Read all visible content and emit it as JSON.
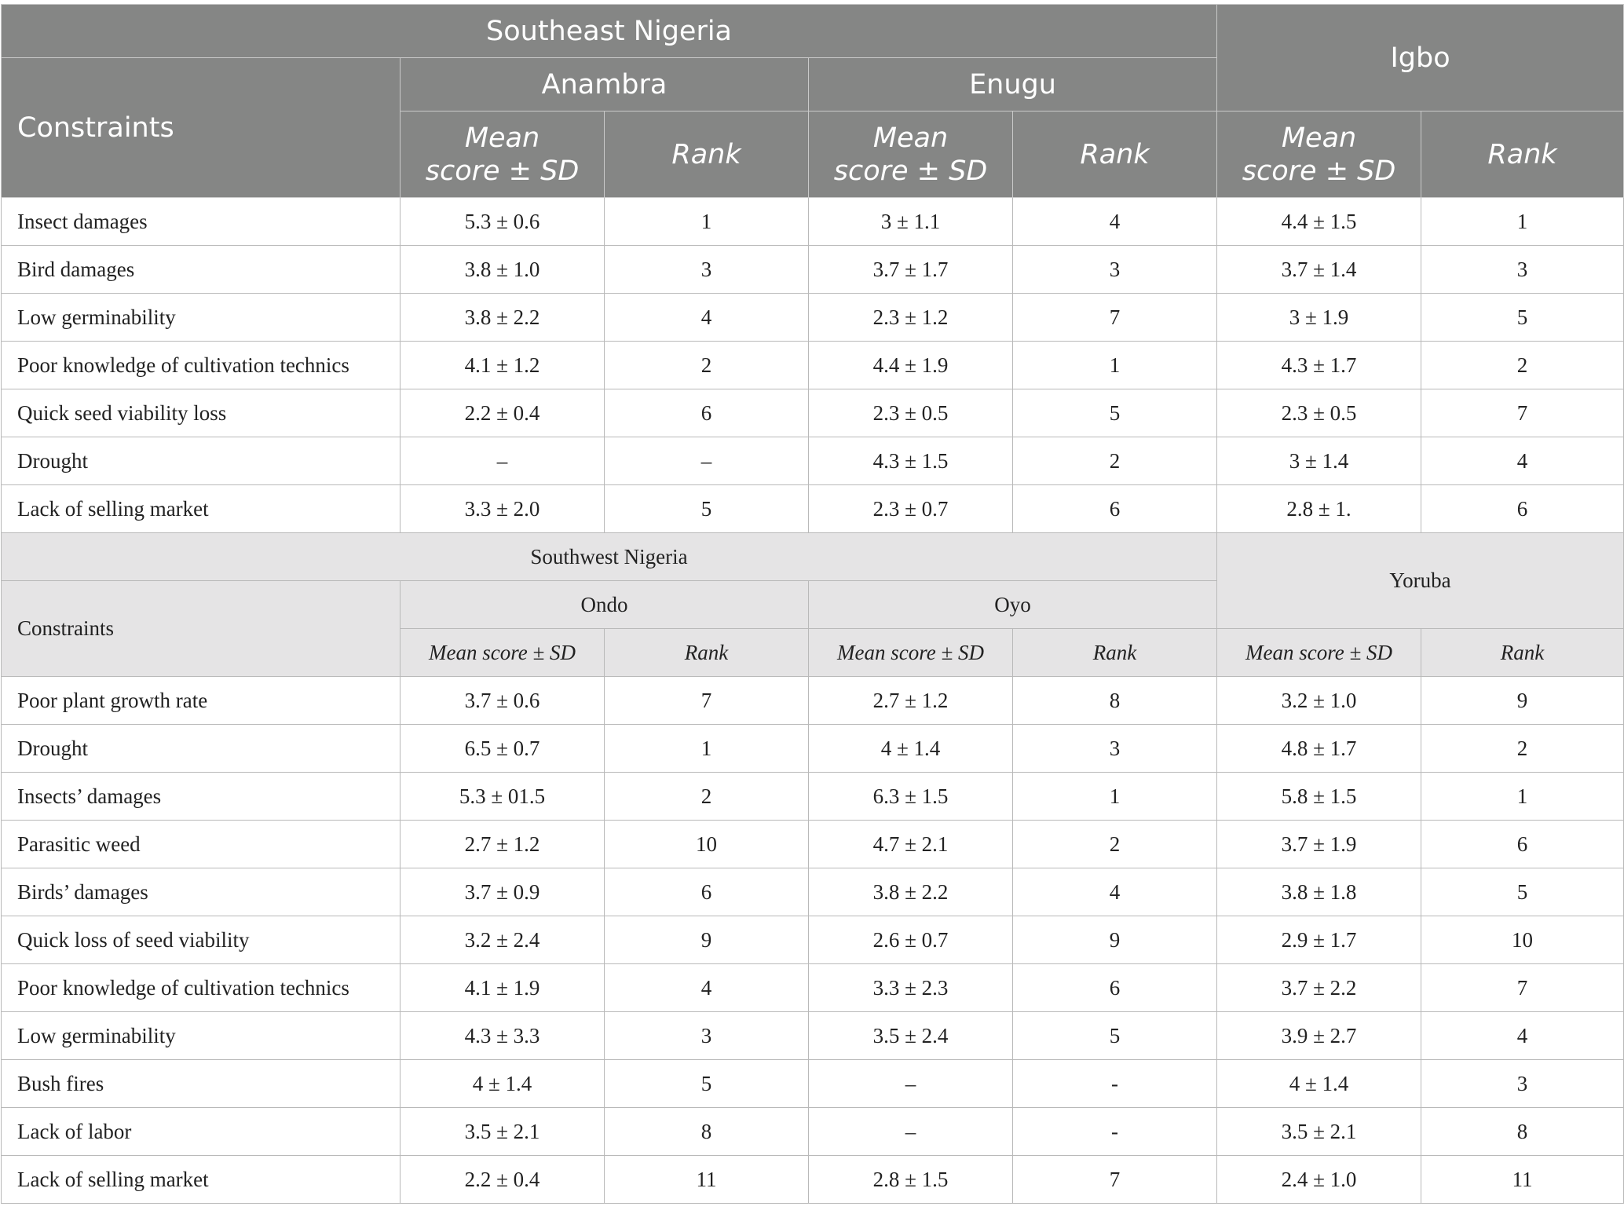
{
  "southeast": {
    "region": "Southeast Nigeria",
    "constraints_label": "Constraints",
    "state1": "Anambra",
    "state2": "Enugu",
    "group": "Igbo",
    "mean_label_1": "Mean",
    "mean_label_2": "score ± SD",
    "rank_label": "Rank",
    "rows": [
      {
        "constraint": "Insect damages",
        "s1_mean": "5.3 ± 0.6",
        "s1_rank": "1",
        "s2_mean": "3 ± 1.1",
        "s2_rank": "4",
        "g_mean": "4.4 ± 1.5",
        "g_rank": "1"
      },
      {
        "constraint": "Bird damages",
        "s1_mean": "3.8 ± 1.0",
        "s1_rank": "3",
        "s2_mean": "3.7 ± 1.7",
        "s2_rank": "3",
        "g_mean": "3.7 ± 1.4",
        "g_rank": "3"
      },
      {
        "constraint": "Low germinability",
        "s1_mean": "3.8 ± 2.2",
        "s1_rank": "4",
        "s2_mean": "2.3 ± 1.2",
        "s2_rank": "7",
        "g_mean": "3 ± 1.9",
        "g_rank": "5"
      },
      {
        "constraint": "Poor knowledge of cultivation technics",
        "s1_mean": "4.1 ± 1.2",
        "s1_rank": "2",
        "s2_mean": "4.4 ± 1.9",
        "s2_rank": "1",
        "g_mean": "4.3 ± 1.7",
        "g_rank": "2"
      },
      {
        "constraint": "Quick seed viability loss",
        "s1_mean": "2.2 ± 0.4",
        "s1_rank": "6",
        "s2_mean": "2.3 ± 0.5",
        "s2_rank": "5",
        "g_mean": "2.3 ± 0.5",
        "g_rank": "7"
      },
      {
        "constraint": "Drought",
        "s1_mean": "–",
        "s1_rank": "–",
        "s2_mean": "4.3 ± 1.5",
        "s2_rank": "2",
        "g_mean": "3 ± 1.4",
        "g_rank": "4"
      },
      {
        "constraint": "Lack of selling market",
        "s1_mean": "3.3 ± 2.0",
        "s1_rank": "5",
        "s2_mean": "2.3 ± 0.7",
        "s2_rank": "6",
        "g_mean": "2.8 ± 1.",
        "g_rank": "6"
      }
    ]
  },
  "southwest": {
    "region": "Southwest Nigeria",
    "constraints_label": "Constraints",
    "state1": "Ondo",
    "state2": "Oyo",
    "group": "Yoruba",
    "mean_label": "Mean score ± SD",
    "rank_label": "Rank",
    "rows": [
      {
        "constraint": "Poor plant growth rate",
        "s1_mean": "3.7 ± 0.6",
        "s1_rank": "7",
        "s2_mean": "2.7 ± 1.2",
        "s2_rank": "8",
        "g_mean": "3.2 ± 1.0",
        "g_rank": "9"
      },
      {
        "constraint": "Drought",
        "s1_mean": "6.5 ± 0.7",
        "s1_rank": "1",
        "s2_mean": "4 ± 1.4",
        "s2_rank": "3",
        "g_mean": "4.8 ± 1.7",
        "g_rank": "2"
      },
      {
        "constraint": "Insects’ damages",
        "s1_mean": "5.3 ± 01.5",
        "s1_rank": "2",
        "s2_mean": "6.3 ± 1.5",
        "s2_rank": "1",
        "g_mean": "5.8 ± 1.5",
        "g_rank": "1"
      },
      {
        "constraint": "Parasitic weed",
        "s1_mean": "2.7 ± 1.2",
        "s1_rank": "10",
        "s2_mean": "4.7 ± 2.1",
        "s2_rank": "2",
        "g_mean": "3.7 ± 1.9",
        "g_rank": "6"
      },
      {
        "constraint": "Birds’ damages",
        "s1_mean": "3.7 ± 0.9",
        "s1_rank": "6",
        "s2_mean": "3.8 ± 2.2",
        "s2_rank": "4",
        "g_mean": "3.8 ± 1.8",
        "g_rank": "5"
      },
      {
        "constraint": "Quick loss of seed viability",
        "s1_mean": "3.2 ± 2.4",
        "s1_rank": "9",
        "s2_mean": "2.6 ± 0.7",
        "s2_rank": "9",
        "g_mean": "2.9 ± 1.7",
        "g_rank": "10"
      },
      {
        "constraint": "Poor knowledge of cultivation technics",
        "s1_mean": "4.1 ± 1.9",
        "s1_rank": "4",
        "s2_mean": "3.3 ± 2.3",
        "s2_rank": "6",
        "g_mean": "3.7 ± 2.2",
        "g_rank": "7"
      },
      {
        "constraint": "Low germinability",
        "s1_mean": "4.3 ± 3.3",
        "s1_rank": "3",
        "s2_mean": "3.5 ± 2.4",
        "s2_rank": "5",
        "g_mean": "3.9 ± 2.7",
        "g_rank": "4"
      },
      {
        "constraint": "Bush fires",
        "s1_mean": "4 ± 1.4",
        "s1_rank": "5",
        "s2_mean": "–",
        "s2_rank": "-",
        "g_mean": "4 ± 1.4",
        "g_rank": "3"
      },
      {
        "constraint": "Lack of labor",
        "s1_mean": "3.5 ± 2.1",
        "s1_rank": "8",
        "s2_mean": "–",
        "s2_rank": "-",
        "g_mean": "3.5 ± 2.1",
        "g_rank": "8"
      },
      {
        "constraint": "Lack of selling market",
        "s1_mean": "2.2 ± 0.4",
        "s1_rank": "11",
        "s2_mean": "2.8 ± 1.5",
        "s2_rank": "7",
        "g_mean": "2.4 ± 1.0",
        "g_rank": "11"
      }
    ]
  }
}
